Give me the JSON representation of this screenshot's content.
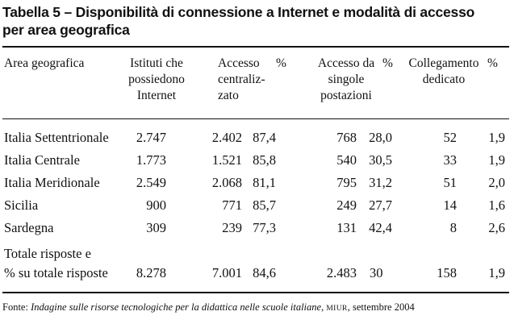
{
  "title": {
    "line1": "Tabella 5 – Disponibilità di connessione a Internet e modalità di accesso",
    "line2": "per area geografica"
  },
  "header": {
    "area": "Area geografica",
    "istituti": [
      "Istituti che",
      "possiedono",
      "Internet"
    ],
    "accesso_centralizzato": [
      "Accesso",
      "centraliz-",
      "zato"
    ],
    "pct1": "%",
    "accesso_singole": [
      "Accesso da",
      "singole",
      "postazioni"
    ],
    "pct2": "%",
    "collegamento": [
      "Collegamento",
      "dedicato"
    ],
    "pct3": "%"
  },
  "rows": [
    {
      "area": "Italia Settentrionale",
      "istituti": "2.747",
      "centr": "2.402",
      "pct1": "87,4",
      "singole": "768",
      "pct2": "28,0",
      "coll": "52",
      "pct3": "1,9"
    },
    {
      "area": "Italia Centrale",
      "istituti": "1.773",
      "centr": "1.521",
      "pct1": "85,8",
      "singole": "540",
      "pct2": "30,5",
      "coll": "33",
      "pct3": "1,9"
    },
    {
      "area": "Italia Meridionale",
      "istituti": "2.549",
      "centr": "2.068",
      "pct1": "81,1",
      "singole": "795",
      "pct2": "31,2",
      "coll": "51",
      "pct3": "2,0"
    },
    {
      "area": "Sicilia",
      "istituti": "900",
      "centr": "771",
      "pct1": "85,7",
      "singole": "249",
      "pct2": "27,7",
      "coll": "14",
      "pct3": "1,6"
    },
    {
      "area": "Sardegna",
      "istituti": "309",
      "centr": "239",
      "pct1": "77,3",
      "singole": "131",
      "pct2": "42,4",
      "coll": "8",
      "pct3": "2,6"
    }
  ],
  "total": {
    "label1": "Totale risposte e",
    "label2": "% su totale risposte",
    "istituti": "8.278",
    "centr": "7.001",
    "pct1": "84,6",
    "singole": "2.483",
    "pct2": "30",
    "coll": "158",
    "pct3": "1,9"
  },
  "footer": {
    "prefix": "Fonte: ",
    "source": "Indagine sulle risorse tecnologiche per la didattica nelle scuole italiane",
    "sep": ", ",
    "org": "MIUR",
    "date": ", settembre 2004"
  }
}
